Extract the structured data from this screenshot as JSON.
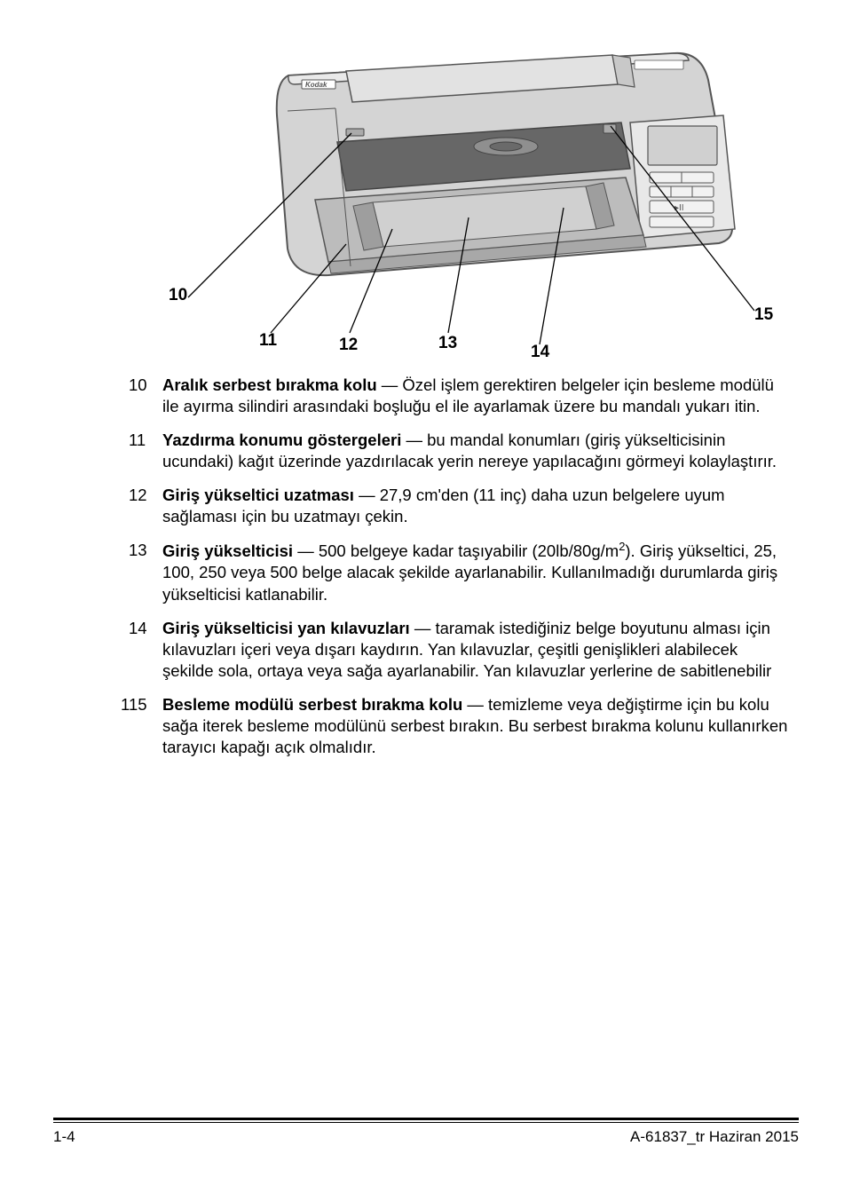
{
  "figure": {
    "callouts": {
      "c10": "10",
      "c11": "11",
      "c12": "12",
      "c13": "13",
      "c14": "14",
      "c15": "15"
    },
    "colors": {
      "body_fill": "#d4d4d4",
      "body_stroke": "#555555",
      "panel_fill": "#e9e9e9",
      "dark_fill": "#676767",
      "tray_fill": "#bcbcbc",
      "line": "#000000"
    }
  },
  "items": [
    {
      "num": "10",
      "bold": "Aralık serbest bırakma kolu",
      "rest": " — Özel işlem gerektiren belgeler için besleme modülü ile ayırma silindiri arasındaki boşluğu el ile ayarlamak üzere bu mandalı yukarı itin."
    },
    {
      "num": "11",
      "bold": "Yazdırma konumu göstergeleri",
      "rest": " — bu mandal konumları (giriş yükselticisinin ucundaki) kağıt üzerinde yazdırılacak yerin nereye yapılacağını görmeyi kolaylaştırır."
    },
    {
      "num": "12",
      "bold": "Giriş yükseltici uzatması",
      "rest": " — 27,9 cm'den (11 inç) daha uzun belgelere uyum sağlaması için bu uzatmayı çekin."
    },
    {
      "num": "13",
      "bold": "Giriş yükselticisi",
      "rest_html": " — 500 belgeye kadar taşıyabilir (20lb/80g/m<sup>2</sup>). Giriş yükseltici, 25, 100, 250 veya 500 belge alacak şekilde ayarlanabilir. Kullanılmadığı durumlarda giriş yükselticisi katlanabilir."
    },
    {
      "num": "14",
      "bold": "Giriş yükselticisi yan kılavuzları",
      "rest": " — taramak istediğiniz belge boyutunu alması için kılavuzları içeri veya dışarı kaydırın. Yan kılavuzlar, çeşitli genişlikleri alabilecek şekilde sola, ortaya veya sağa ayarlanabilir. Yan kılavuzlar yerlerine de sabitlenebilir"
    },
    {
      "num": "15",
      "bold": "Besleme modülü serbest bırakma kolu",
      "rest": " — temizleme veya değiştirme için bu kolu sağa iterek besleme modülünü serbest bırakın. Bu serbest bırakma kolunu kullanırken tarayıcı kapağı açık olmalıdır.",
      "prefix1": true
    }
  ],
  "footer": {
    "left": "1-4",
    "right": "A-61837_tr  Haziran 2015"
  }
}
